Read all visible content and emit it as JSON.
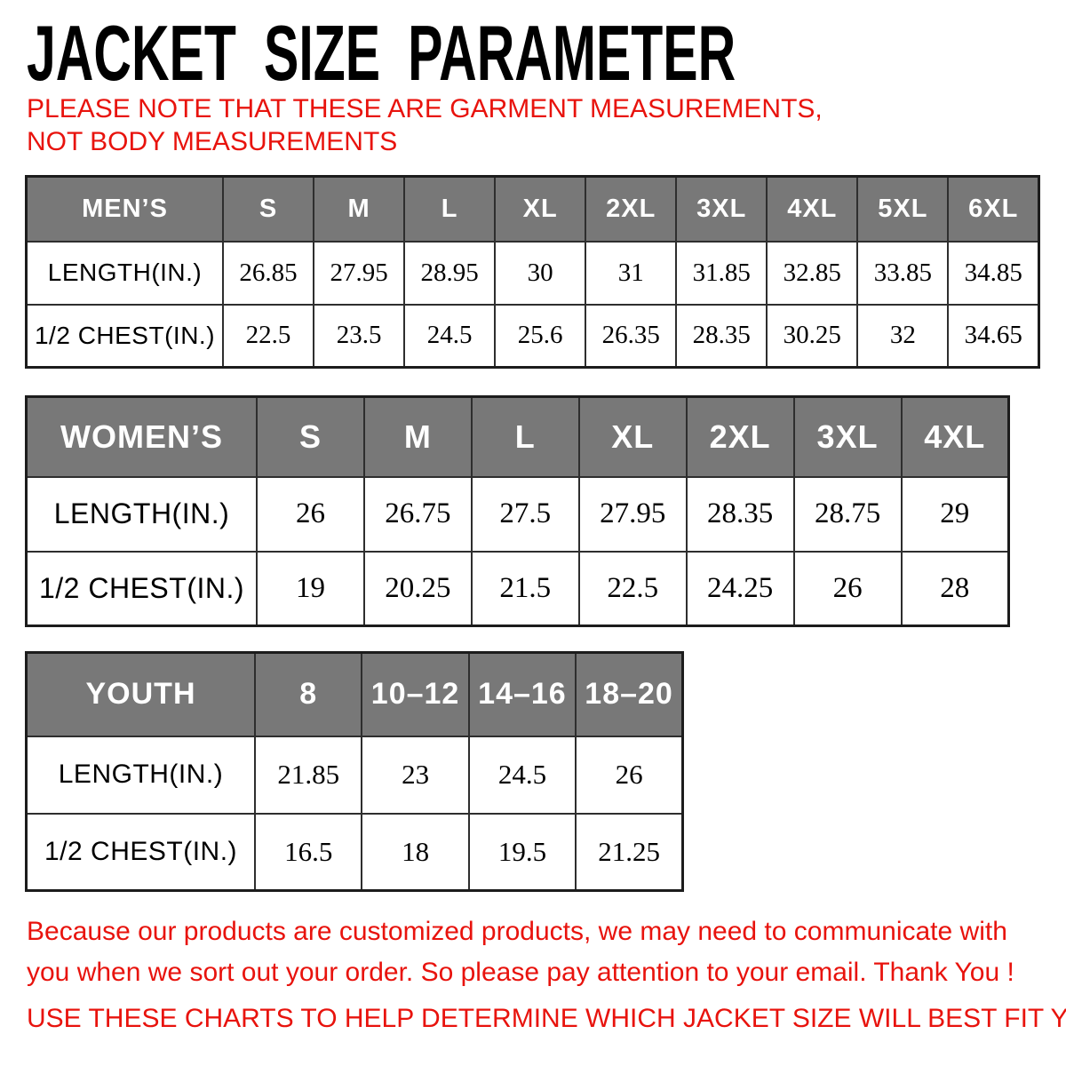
{
  "header": {
    "title": "JACKET SIZE PARAMETER",
    "note": "PLEASE NOTE THAT THESE ARE GARMENT MEASUREMENTS, NOT BODY MEASUREMENTS"
  },
  "tables": [
    {
      "id": "mens",
      "title": "MEN’S",
      "columns": [
        "S",
        "M",
        "L",
        "XL",
        "2XL",
        "3XL",
        "4XL",
        "5XL",
        "6XL"
      ],
      "rows": [
        {
          "label": "LENGTH(IN.)",
          "values": [
            "26.85",
            "27.95",
            "28.95",
            "30",
            "31",
            "31.85",
            "32.85",
            "33.85",
            "34.85"
          ]
        },
        {
          "label": "1/2 CHEST(IN.)",
          "values": [
            "22.5",
            "23.5",
            "24.5",
            "25.6",
            "26.35",
            "28.35",
            "30.25",
            "32",
            "34.65"
          ]
        }
      ]
    },
    {
      "id": "womens",
      "title": "WOMEN’S",
      "columns": [
        "S",
        "M",
        "L",
        "XL",
        "2XL",
        "3XL",
        "4XL"
      ],
      "rows": [
        {
          "label": "LENGTH(IN.)",
          "values": [
            "26",
            "26.75",
            "27.5",
            "27.95",
            "28.35",
            "28.75",
            "29"
          ]
        },
        {
          "label": "1/2 CHEST(IN.)",
          "values": [
            "19",
            "20.25",
            "21.5",
            "22.5",
            "24.25",
            "26",
            "28"
          ]
        }
      ]
    },
    {
      "id": "youth",
      "title": "YOUTH",
      "columns": [
        "8",
        "10–12",
        "14–16",
        "18–20"
      ],
      "rows": [
        {
          "label": "LENGTH(IN.)",
          "values": [
            "21.85",
            "23",
            "24.5",
            "26"
          ]
        },
        {
          "label": "1/2 CHEST(IN.)",
          "values": [
            "16.5",
            "18",
            "19.5",
            "21.25"
          ]
        }
      ]
    }
  ],
  "footer": {
    "paragraph1": "Because our products are customized products, we may need to communicate with you when we sort out your order. So please pay attention to your email. Thank You !",
    "paragraph2": "USE THESE CHARTS TO HELP DETERMINE WHICH JACKET SIZE WILL BEST FIT YOU."
  },
  "colors": {
    "table_header_bg": "#787878",
    "accent_red": "#e8130d",
    "text_black": "#000000"
  }
}
